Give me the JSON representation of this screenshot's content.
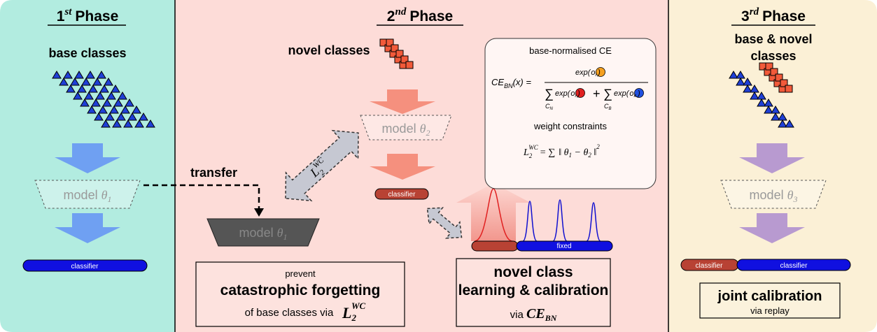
{
  "phase1": {
    "title": {
      "number": "1",
      "suffix": "st",
      "word": "Phase"
    },
    "input_label": "base classes",
    "model": {
      "text": "model",
      "symbol": "θ",
      "sub": "1"
    },
    "classifier": "classifier"
  },
  "transfer": "transfer",
  "phase2": {
    "title": {
      "number": "2",
      "suffix": "nd",
      "word": "Phase"
    },
    "input_label": "novel classes",
    "model_new": {
      "text": "model",
      "symbol": "θ",
      "sub": "2"
    },
    "model_old": {
      "text": "model",
      "symbol": "θ",
      "sub": "1"
    },
    "classifier": "classifier",
    "fixed_label": "fixed",
    "constraint_arrow": {
      "symbol": "L",
      "sub": "2",
      "sup": "WC"
    },
    "formula_box": {
      "ce_title": "base-normalised CE",
      "ce_formula": {
        "lhs": "CE",
        "lhs_sub": "BN",
        "lhs_rest": "(x) =",
        "num_exp": "exp(",
        "num_o": "o",
        "num_o_sub": "i",
        "close": ")",
        "sum": "∑",
        "sum1_c": "C",
        "sum1_sub": "N",
        "den1_exp": "exp(",
        "den1_o": "o",
        "den1_o_sub": "i",
        "plus": "+",
        "sum2_c": "C",
        "sum2_sub": "B",
        "den2_exp": "exp(",
        "den2_o": "o",
        "den2_o_sub": "k"
      },
      "wc_title": "weight constraints",
      "wc_formula": {
        "lhs": "L",
        "lhs_sub": "2",
        "lhs_sup": "WC",
        "eq": "= ∑",
        "open": "‖ θ",
        "sub1": "1",
        "minus": " − θ",
        "sub2": "2",
        "close": " ‖",
        "power": "2"
      }
    },
    "forgetting_box": {
      "line1": "prevent",
      "line2": "catastrophic forgetting",
      "line3": "of base classes via",
      "symbol": "L",
      "sub": "2",
      "sup": "WC"
    },
    "calibration_box": {
      "line1": "novel class",
      "line2": "learning & calibration",
      "line3": "via",
      "symbol": "CE",
      "sub": "BN"
    }
  },
  "phase3": {
    "title": {
      "number": "3",
      "suffix": "rd",
      "word": "Phase"
    },
    "input_label_1": "base & novel",
    "input_label_2": "classes",
    "model": {
      "text": "model",
      "symbol": "θ",
      "sub": "3"
    },
    "classifier_old": "classifier",
    "classifier_new": "classifier",
    "box": {
      "line1": "joint calibration",
      "line2": "via replay"
    }
  }
}
